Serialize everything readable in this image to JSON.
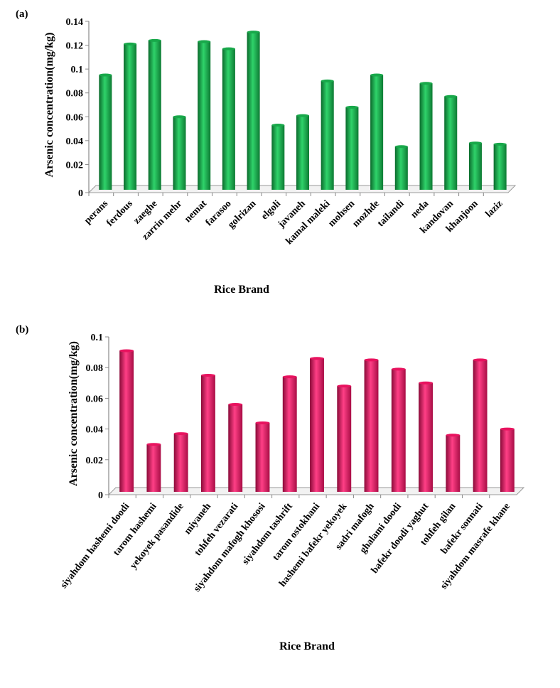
{
  "chart_data": [
    {
      "type": "bar",
      "panel_label": "(a)",
      "title": "",
      "xlabel": "Rice Brand",
      "ylabel": "Arsenic concentration(mg/kg)",
      "ylim": [
        0,
        0.14
      ],
      "yticks": [
        0,
        0.02,
        0.04,
        0.06,
        0.08,
        0.1,
        0.12,
        0.14
      ],
      "ytick_labels": [
        "0",
        "0.02",
        "0.04",
        "0.06",
        "0.08",
        "0.1",
        "0.12",
        "0.14"
      ],
      "color": "#18a84a",
      "categories": [
        "perans",
        "ferdous",
        "zaeghe",
        "zarrin mehr",
        "nemat",
        "farasoo",
        "golrizan",
        "elgoli",
        "javaneh",
        "kamal maleki",
        "mohsen",
        "mozhde",
        "tailandi",
        "neda",
        "kandovan",
        "khanjoon",
        "laziz"
      ],
      "values": [
        0.095,
        0.121,
        0.124,
        0.06,
        0.123,
        0.117,
        0.131,
        0.053,
        0.061,
        0.09,
        0.068,
        0.095,
        0.035,
        0.088,
        0.077,
        0.038,
        0.037
      ]
    },
    {
      "type": "bar",
      "panel_label": "(b)",
      "title": "",
      "xlabel": "Rice Brand",
      "ylabel": "Arsenic concentration(mg/kg)",
      "ylim": [
        0,
        0.1
      ],
      "yticks": [
        0,
        0.02,
        0.04,
        0.06,
        0.08,
        0.1
      ],
      "ytick_labels": [
        "0",
        "0.02",
        "0.04",
        "0.06",
        "0.08",
        "0.1"
      ],
      "color": "#e8135f",
      "categories": [
        "siyahdom hashemi doodi",
        "tarom hashemi",
        "yekoyek pasandide",
        "miyaneh",
        "tohfeh vezarati",
        "siyahdom mafogh khososi",
        "siyahdom tashrift",
        "tarom ostokhani",
        "hashemi bafekr yekoyek",
        "sadri mafogh",
        "ghalami doodi",
        "bafekr doodi yaghut",
        "tohfeh gilan",
        "bafekr sonnati",
        "siyahdom masrafe khane"
      ],
      "values": [
        0.091,
        0.03,
        0.037,
        0.075,
        0.056,
        0.044,
        0.074,
        0.086,
        0.068,
        0.085,
        0.079,
        0.07,
        0.036,
        0.085,
        0.04
      ]
    }
  ]
}
